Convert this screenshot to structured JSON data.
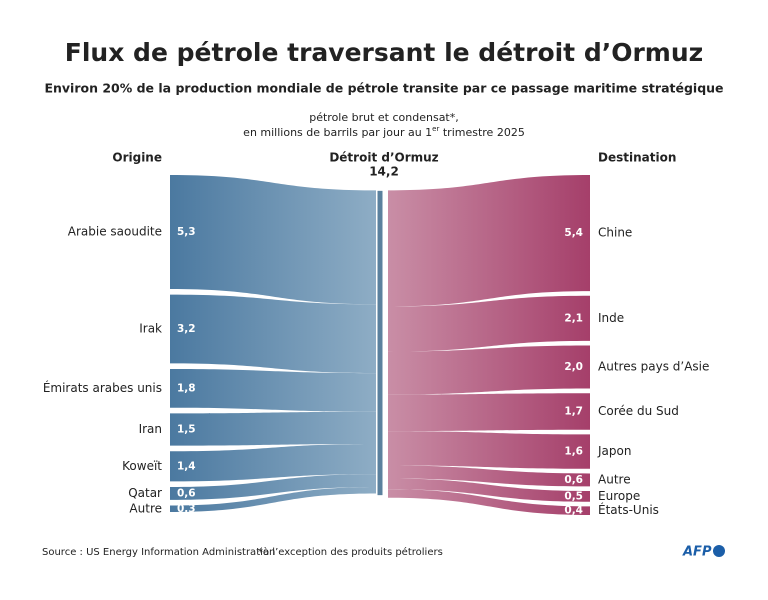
{
  "chart_data": {
    "type": "sankey",
    "title": "Flux de pétrole traversant le détroit d’Ormuz",
    "subtitle": "Environ 20% de la production mondiale de pétrole transite par ce passage maritime stratégique",
    "note": "pétrole brut et condensat*,",
    "unit_before": "en millions de barrils par jour au 1",
    "unit_sup": "er",
    "unit_after": " trimestre 2025",
    "origin_label": "Origine",
    "destination_label": "Destination",
    "hub_label": "Détroit d’Ormuz",
    "hub_value": 14.2,
    "hub_value_label": "14,2",
    "hub_color": "#5b819e",
    "sources": {
      "names": [
        "Arabie saoudite",
        "Irak",
        "Émirats arabes unis",
        "Iran",
        "Koweït",
        "Qatar",
        "Autre"
      ],
      "values": [
        5.3,
        3.2,
        1.8,
        1.5,
        1.4,
        0.6,
        0.3
      ],
      "value_labels": [
        "5,3",
        "3,2",
        "1,8",
        "1,5",
        "1,4",
        "0,6",
        "0,3"
      ],
      "color": [
        "#4b79a0",
        "#8eadc5"
      ]
    },
    "destinations": {
      "names": [
        "Chine",
        "Inde",
        "Autres pays d’Asie",
        "Corée du Sud",
        "Japon",
        "Autre",
        "Europe",
        "États-Unis"
      ],
      "values": [
        5.4,
        2.1,
        2.0,
        1.7,
        1.6,
        0.6,
        0.5,
        0.4
      ],
      "value_labels": [
        "5,4",
        "2,1",
        "2,0",
        "1,7",
        "1,6",
        "0,6",
        "0,5",
        "0,4"
      ],
      "color": [
        "#c98ea6",
        "#a53f6a"
      ]
    },
    "source": "Source : US Energy Information Administration",
    "footnote": "*à l’exception des produits pétroliers",
    "logo": "AFP"
  }
}
